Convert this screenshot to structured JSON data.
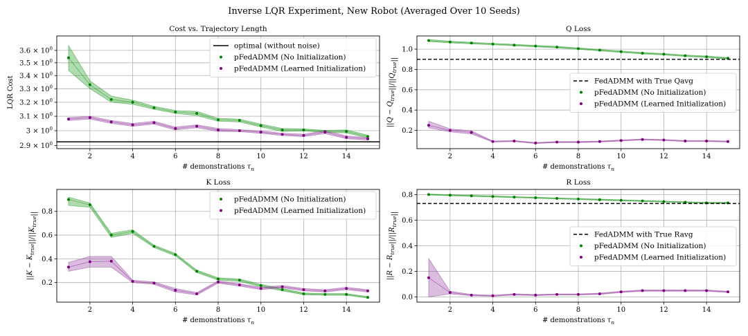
{
  "figure": {
    "suptitle": "Inverse LQR Experiment, New Robot (Averaged Over 10 Seeds)"
  },
  "style": {
    "green_fill": "#2ca02c",
    "green_marker": "#008000",
    "purple_fill": "#9b4ea8",
    "purple_marker": "#800080",
    "grid": "#b0b0b0",
    "ref_line": "#000000"
  },
  "chart_data": [
    {
      "id": "cost",
      "type": "line",
      "title": "Cost vs. Trajectory Length",
      "xlabel": "# demonstrations τn",
      "ylabel": "LQR Cost",
      "x": [
        1,
        2,
        3,
        4,
        5,
        6,
        7,
        8,
        9,
        10,
        11,
        12,
        13,
        14,
        15
      ],
      "xlim": [
        0.45,
        15.55
      ],
      "xticks": [
        2,
        4,
        6,
        8,
        10,
        12,
        14
      ],
      "yscale": "log",
      "ylim": [
        2.88,
        3.72
      ],
      "yticks": [
        2.9,
        3.0,
        3.1,
        3.2,
        3.3,
        3.4,
        3.5,
        3.6
      ],
      "ytick_labels": [
        "2.9 × 10⁰",
        "3 × 10⁰",
        "3.1 × 10⁰",
        "3.2 × 10⁰",
        "3.3 × 10⁰",
        "3.4 × 10⁰",
        "3.5 × 10⁰",
        "3.6 × 10⁰"
      ],
      "grid": true,
      "legend_position": "top-right",
      "reference_line": {
        "name": "optimal (without noise)",
        "value": 2.925,
        "style": "solid"
      },
      "series": [
        {
          "name": "pFedADMM (No Initialization)",
          "color_key": "green",
          "values": [
            3.54,
            3.33,
            3.22,
            3.2,
            3.16,
            3.13,
            3.12,
            3.075,
            3.07,
            3.035,
            3.005,
            3.005,
            2.995,
            2.995,
            2.96
          ],
          "lower": [
            3.44,
            3.3,
            3.2,
            3.185,
            3.15,
            3.12,
            3.105,
            3.065,
            3.06,
            3.025,
            2.995,
            2.998,
            2.988,
            2.985,
            2.95
          ],
          "upper": [
            3.64,
            3.36,
            3.245,
            3.215,
            3.17,
            3.14,
            3.135,
            3.085,
            3.08,
            3.045,
            3.015,
            3.012,
            3.002,
            3.005,
            2.97
          ]
        },
        {
          "name": "pFedADMM (Learned Initialization)",
          "color_key": "purple",
          "values": [
            3.08,
            3.09,
            3.06,
            3.04,
            3.055,
            3.015,
            3.03,
            3.005,
            3.0,
            2.99,
            2.975,
            2.968,
            2.99,
            2.955,
            2.945
          ],
          "lower": [
            3.07,
            3.08,
            3.05,
            3.03,
            3.045,
            3.005,
            3.02,
            2.995,
            2.993,
            2.982,
            2.967,
            2.96,
            2.98,
            2.946,
            2.936
          ],
          "upper": [
            3.09,
            3.1,
            3.07,
            3.05,
            3.065,
            3.025,
            3.04,
            3.015,
            3.007,
            2.998,
            2.983,
            2.976,
            3.0,
            2.964,
            2.954
          ]
        }
      ]
    },
    {
      "id": "q",
      "type": "line",
      "title": "Q Loss",
      "xlabel": "# demonstrations τn",
      "ylabel": "||Q − Qtrue||/||Qtrue||",
      "x": [
        1,
        2,
        3,
        4,
        5,
        6,
        7,
        8,
        9,
        10,
        11,
        12,
        13,
        14,
        15
      ],
      "xlim": [
        0.45,
        15.55
      ],
      "xticks": [
        2,
        4,
        6,
        8,
        10,
        12,
        14
      ],
      "yscale": "linear",
      "ylim": [
        0.02,
        1.13
      ],
      "yticks": [
        0.2,
        0.4,
        0.6,
        0.8,
        1.0
      ],
      "ytick_labels": [
        "0.2",
        "0.4",
        "0.6",
        "0.8",
        "1.0"
      ],
      "grid": true,
      "legend_position": "center-right",
      "reference_line": {
        "name": "FedADMM with True Qavg",
        "value": 0.9,
        "style": "dashed"
      },
      "series": [
        {
          "name": "pFedADMM (No Initialization)",
          "color_key": "green",
          "values": [
            1.085,
            1.07,
            1.06,
            1.05,
            1.04,
            1.03,
            1.02,
            1.005,
            0.99,
            0.975,
            0.96,
            0.95,
            0.935,
            0.925,
            0.91
          ],
          "lower": [
            1.075,
            1.062,
            1.052,
            1.043,
            1.033,
            1.023,
            1.013,
            0.998,
            0.983,
            0.968,
            0.953,
            0.943,
            0.928,
            0.918,
            0.903
          ],
          "upper": [
            1.095,
            1.078,
            1.068,
            1.057,
            1.047,
            1.037,
            1.027,
            1.012,
            0.997,
            0.982,
            0.967,
            0.957,
            0.942,
            0.932,
            0.917
          ]
        },
        {
          "name": "pFedADMM (Learned Initialization)",
          "color_key": "purple",
          "values": [
            0.25,
            0.2,
            0.18,
            0.09,
            0.095,
            0.075,
            0.085,
            0.085,
            0.09,
            0.1,
            0.11,
            0.105,
            0.095,
            0.095,
            0.09
          ],
          "lower": [
            0.225,
            0.185,
            0.165,
            0.085,
            0.09,
            0.07,
            0.08,
            0.08,
            0.085,
            0.095,
            0.105,
            0.1,
            0.09,
            0.09,
            0.085
          ],
          "upper": [
            0.29,
            0.215,
            0.195,
            0.095,
            0.1,
            0.08,
            0.09,
            0.09,
            0.095,
            0.105,
            0.115,
            0.11,
            0.1,
            0.1,
            0.095
          ]
        }
      ]
    },
    {
      "id": "k",
      "type": "line",
      "title": "K Loss",
      "xlabel": "# demonstrations τn",
      "ylabel": "||K − Ktrue||/||Ktrue||",
      "x": [
        1,
        2,
        3,
        4,
        5,
        6,
        7,
        8,
        9,
        10,
        11,
        12,
        13,
        14,
        15
      ],
      "xlim": [
        0.45,
        15.55
      ],
      "xticks": [
        2,
        4,
        6,
        8,
        10,
        12,
        14
      ],
      "yscale": "linear",
      "ylim": [
        0.035,
        0.985
      ],
      "yticks": [
        0.2,
        0.4,
        0.6,
        0.8
      ],
      "ytick_labels": [
        "0.2",
        "0.4",
        "0.6",
        "0.8"
      ],
      "grid": true,
      "legend_position": "top-right",
      "series": [
        {
          "name": "pFedADMM (No Initialization)",
          "color_key": "green",
          "values": [
            0.9,
            0.855,
            0.6,
            0.63,
            0.505,
            0.435,
            0.295,
            0.23,
            0.22,
            0.175,
            0.14,
            0.105,
            0.1,
            0.1,
            0.075
          ],
          "lower": [
            0.85,
            0.835,
            0.58,
            0.615,
            0.495,
            0.425,
            0.285,
            0.22,
            0.21,
            0.165,
            0.13,
            0.098,
            0.093,
            0.093,
            0.068
          ],
          "upper": [
            0.92,
            0.87,
            0.615,
            0.645,
            0.515,
            0.445,
            0.305,
            0.24,
            0.23,
            0.185,
            0.15,
            0.112,
            0.107,
            0.107,
            0.082
          ]
        },
        {
          "name": "pFedADMM (Learned Initialization)",
          "color_key": "purple",
          "values": [
            0.33,
            0.375,
            0.38,
            0.21,
            0.195,
            0.135,
            0.105,
            0.205,
            0.18,
            0.15,
            0.165,
            0.14,
            0.13,
            0.15,
            0.13
          ],
          "lower": [
            0.295,
            0.33,
            0.33,
            0.2,
            0.185,
            0.12,
            0.095,
            0.195,
            0.17,
            0.14,
            0.155,
            0.13,
            0.12,
            0.14,
            0.12
          ],
          "upper": [
            0.37,
            0.42,
            0.42,
            0.22,
            0.205,
            0.15,
            0.115,
            0.215,
            0.19,
            0.16,
            0.175,
            0.15,
            0.14,
            0.16,
            0.14
          ]
        }
      ]
    },
    {
      "id": "r",
      "type": "line",
      "title": "R Loss",
      "xlabel": "# demonstrations τn",
      "ylabel": "||R − Rtrue||/||Rtrue||",
      "x": [
        1,
        2,
        3,
        4,
        5,
        6,
        7,
        8,
        9,
        10,
        11,
        12,
        13,
        14,
        15
      ],
      "xlim": [
        0.45,
        15.55
      ],
      "xticks": [
        2,
        4,
        6,
        8,
        10,
        12,
        14
      ],
      "yscale": "linear",
      "ylim": [
        -0.04,
        0.84
      ],
      "yticks": [
        0.0,
        0.2,
        0.4,
        0.6,
        0.8
      ],
      "ytick_labels": [
        "0.0",
        "0.2",
        "0.4",
        "0.6",
        "0.8"
      ],
      "grid": true,
      "legend_position": "center-right",
      "reference_line": {
        "name": "FedADMM with True Ravg",
        "value": 0.73,
        "style": "dashed"
      },
      "series": [
        {
          "name": "pFedADMM (No Initialization)",
          "color_key": "green",
          "values": [
            0.8,
            0.795,
            0.79,
            0.785,
            0.78,
            0.775,
            0.77,
            0.765,
            0.76,
            0.755,
            0.75,
            0.745,
            0.74,
            0.735,
            0.735
          ],
          "lower": [
            0.796,
            0.791,
            0.786,
            0.781,
            0.776,
            0.771,
            0.766,
            0.761,
            0.756,
            0.751,
            0.746,
            0.741,
            0.736,
            0.731,
            0.731
          ],
          "upper": [
            0.804,
            0.799,
            0.794,
            0.789,
            0.784,
            0.779,
            0.774,
            0.769,
            0.764,
            0.759,
            0.754,
            0.749,
            0.744,
            0.739,
            0.739
          ]
        },
        {
          "name": "pFedADMM (Learned Initialization)",
          "color_key": "purple",
          "values": [
            0.15,
            0.035,
            0.015,
            0.01,
            0.02,
            0.015,
            0.02,
            0.02,
            0.025,
            0.04,
            0.05,
            0.05,
            0.05,
            0.05,
            0.04
          ],
          "lower": [
            0.0,
            0.025,
            0.01,
            0.006,
            0.015,
            0.011,
            0.016,
            0.016,
            0.02,
            0.035,
            0.045,
            0.045,
            0.045,
            0.045,
            0.035
          ],
          "upper": [
            0.3,
            0.045,
            0.02,
            0.014,
            0.025,
            0.019,
            0.024,
            0.024,
            0.03,
            0.045,
            0.055,
            0.055,
            0.055,
            0.055,
            0.045
          ]
        }
      ]
    }
  ]
}
